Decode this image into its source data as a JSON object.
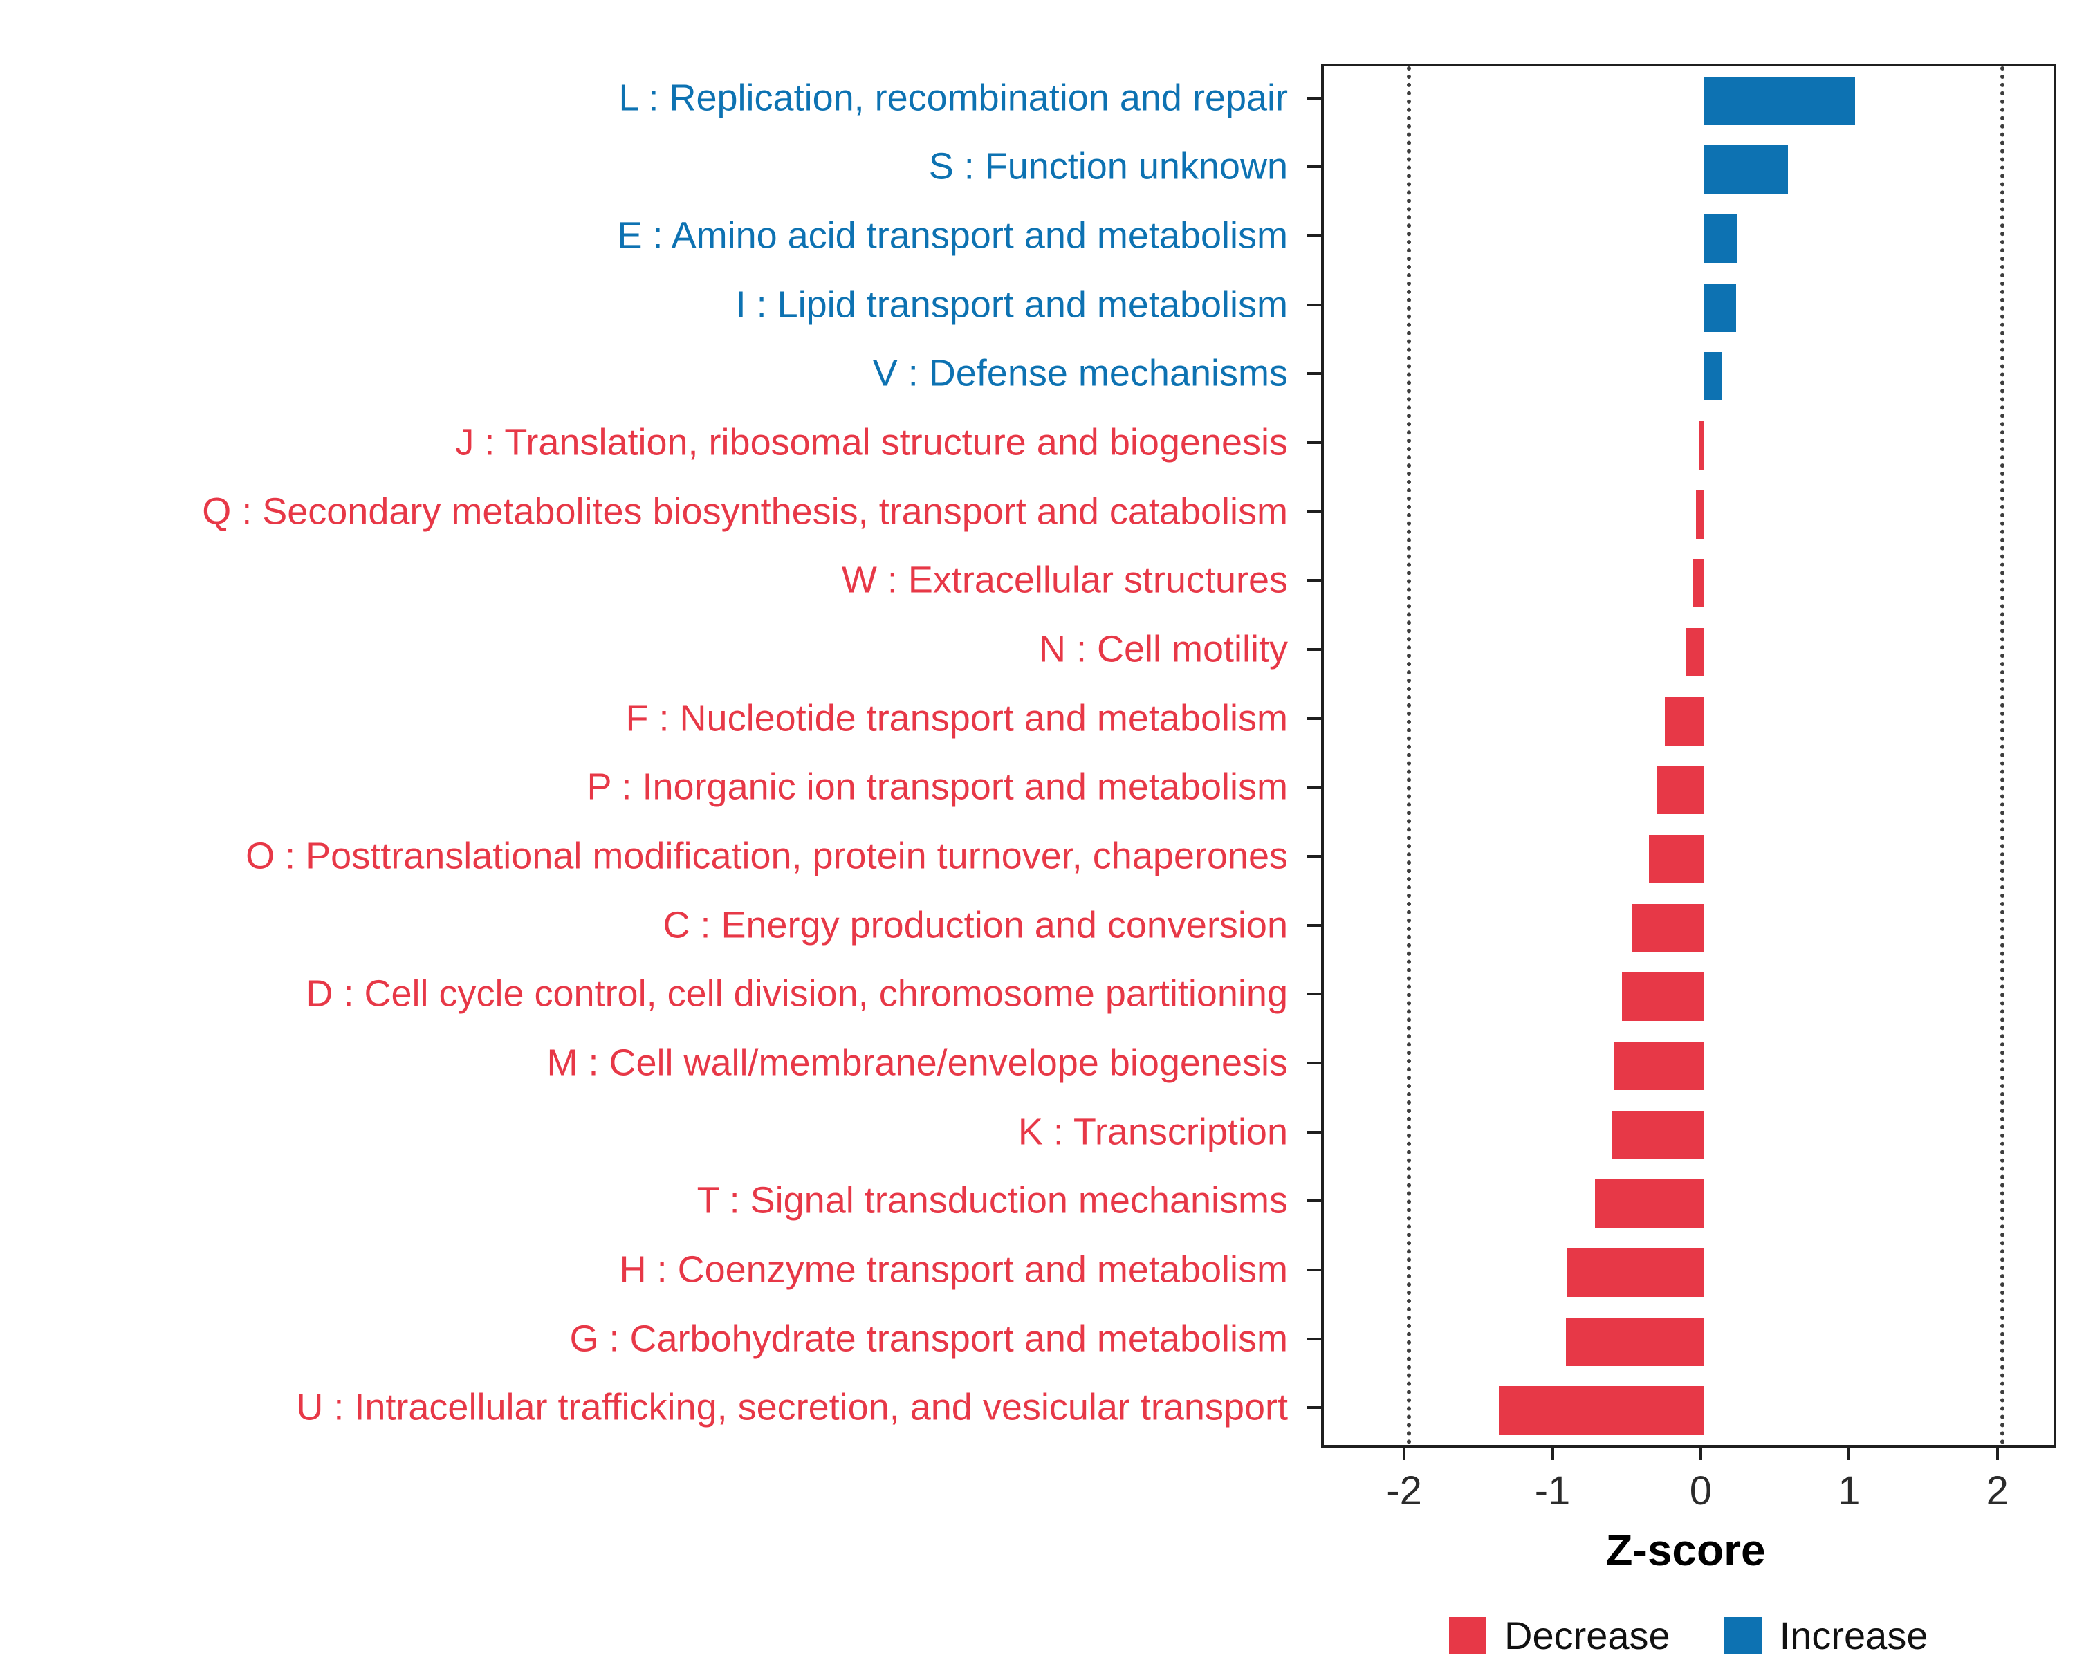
{
  "chart_data": {
    "type": "bar",
    "orientation": "horizontal",
    "title": "",
    "xlabel": "Z-score",
    "xlim": [
      -2.56,
      2.36
    ],
    "grid": false,
    "reference_lines": [
      -2,
      2
    ],
    "tick_values": [
      -2,
      -1,
      0,
      1,
      2
    ],
    "tick_labels": [
      "-2",
      "-1",
      "0",
      "1",
      "2"
    ],
    "legend_position": "bottom",
    "legend": [
      {
        "label": "Decrease",
        "color": "#E73847"
      },
      {
        "label": "Increase",
        "color": "#0D72B2"
      }
    ],
    "categories": [
      "L : Replication, recombination and repair",
      "S : Function unknown",
      "E : Amino acid transport and metabolism",
      "I : Lipid transport and metabolism",
      "V : Defense mechanisms",
      "J : Translation, ribosomal structure and biogenesis",
      "Q : Secondary metabolites biosynthesis, transport and catabolism",
      "W : Extracellular structures",
      "N : Cell motility",
      "F : Nucleotide transport and metabolism",
      "P : Inorganic ion transport and metabolism",
      "O : Posttranslational modification, protein turnover, chaperones",
      "C : Energy production and conversion",
      "D : Cell cycle control, cell division, chromosome partitioning",
      "M : Cell wall/membrane/envelope biogenesis",
      "K : Transcription",
      "T : Signal transduction mechanisms",
      "H : Coenzyme transport and metabolism",
      "G : Carbohydrate transport and metabolism",
      "U : Intracellular trafficking, secretion, and vesicular transport"
    ],
    "values": [
      1.02,
      0.57,
      0.23,
      0.22,
      0.12,
      -0.03,
      -0.05,
      -0.07,
      -0.12,
      -0.26,
      -0.31,
      -0.37,
      -0.48,
      -0.55,
      -0.6,
      -0.62,
      -0.73,
      -0.92,
      -0.93,
      -1.38
    ],
    "groups": [
      "Increase",
      "Increase",
      "Increase",
      "Increase",
      "Increase",
      "Decrease",
      "Decrease",
      "Decrease",
      "Decrease",
      "Decrease",
      "Decrease",
      "Decrease",
      "Decrease",
      "Decrease",
      "Decrease",
      "Decrease",
      "Decrease",
      "Decrease",
      "Decrease",
      "Decrease"
    ]
  }
}
